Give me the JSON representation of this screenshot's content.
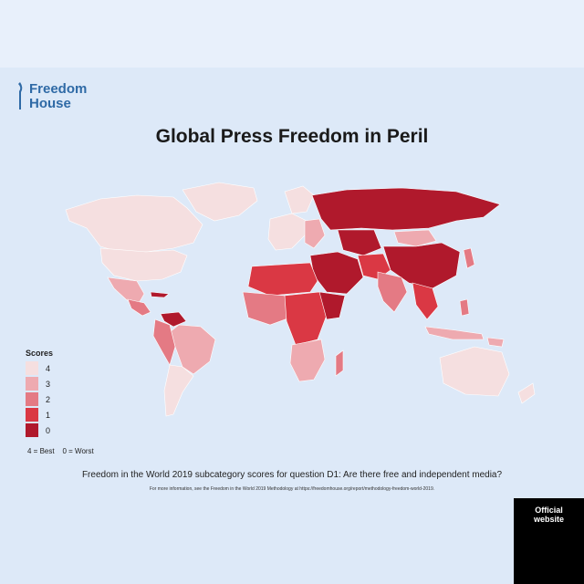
{
  "header": {
    "logo_line1": "Freedom",
    "logo_line2": "House",
    "title": "Global Press Freedom in Peril"
  },
  "legend": {
    "title": "Scores",
    "items": [
      {
        "label": "4",
        "color": "#f5dfe0"
      },
      {
        "label": "3",
        "color": "#eeaab0"
      },
      {
        "label": "2",
        "color": "#e47a84"
      },
      {
        "label": "1",
        "color": "#da3844"
      },
      {
        "label": "0",
        "color": "#b0192c"
      }
    ],
    "note_best": "4 = Best",
    "note_worst": "0 = Worst"
  },
  "footer": {
    "caption": "Freedom in the World 2019 subcategory scores for question D1: Are there free and independent media?",
    "more_info": "For more information, see the Freedom in the World 2019 Methodology at https://freedomhouse.org/report/methodology-freedom-world-2019."
  },
  "badge": {
    "label": "Official website"
  },
  "colors": {
    "ocean": "#dde9f8",
    "brand": "#2f6aa6"
  }
}
